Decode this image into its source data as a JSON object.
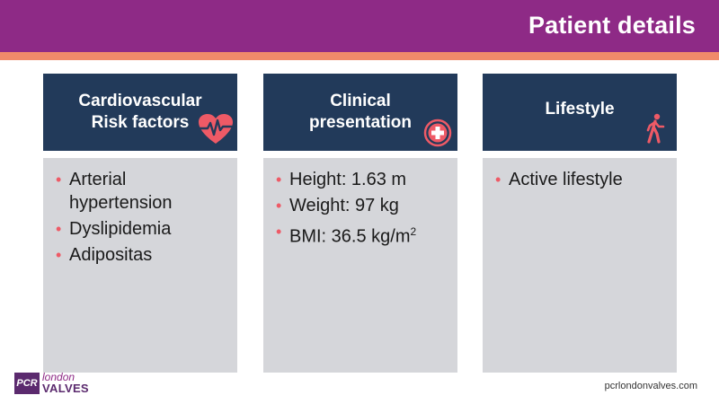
{
  "slide": {
    "title": "Patient details"
  },
  "columns": [
    {
      "heading_lines": [
        "Cardiovascular",
        "Risk factors"
      ],
      "icon": "heart-pulse-icon",
      "items": [
        "Arterial hypertension",
        "Dyslipidemia",
        "Adipositas"
      ]
    },
    {
      "heading_lines": [
        "Clinical",
        "presentation"
      ],
      "icon": "medical-cross-icon",
      "items": [
        "Height: 1.63 m",
        "Weight: 97 kg",
        "BMI: 36.5 kg/m"
      ],
      "bmi_superscript": "2"
    },
    {
      "heading_lines": [
        "Lifestyle"
      ],
      "icon": "walking-person-icon",
      "items": [
        "Active lifestyle"
      ]
    }
  ],
  "footer": {
    "url": "pcrlondonvalves.com",
    "logo_pcr": "PCR",
    "logo_london": "london",
    "logo_valves": "VALVES"
  },
  "colors": {
    "header": "#8e2a86",
    "stripe": "#f08a6a",
    "column_header": "#223a5a",
    "column_body": "#d5d6da",
    "accent": "#ee5a66"
  }
}
